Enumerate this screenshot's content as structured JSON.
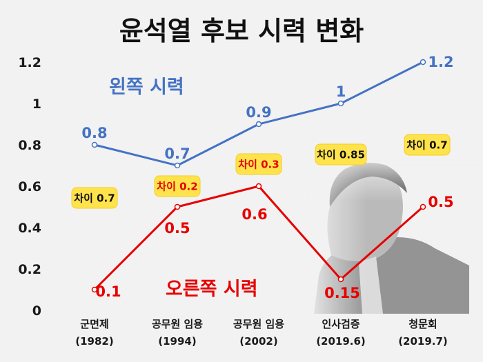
{
  "chart_data": {
    "type": "line",
    "title": "윤석열 후보 시력 변화",
    "categories": [
      [
        "군면제",
        "(1982)"
      ],
      [
        "공무원 임용",
        "(1994)"
      ],
      [
        "공무원 임용",
        "(2002)"
      ],
      [
        "인사검증",
        "(2019.6)"
      ],
      [
        "청문회",
        "(2019.7)"
      ]
    ],
    "ylim": [
      0,
      1.2
    ],
    "yticks": [
      "0",
      "0.2",
      "0.4",
      "0.6",
      "0.8",
      "1",
      "1.2"
    ],
    "grid": false,
    "series": [
      {
        "name": "왼쪽 시력",
        "color": "#4472c4",
        "values": [
          0.8,
          0.7,
          0.9,
          1,
          1.2
        ],
        "labels": [
          "0.8",
          "0.7",
          "0.9",
          "1",
          "1.2"
        ]
      },
      {
        "name": "오른쪽 시력",
        "color": "#e60000",
        "values": [
          0.1,
          0.5,
          0.6,
          0.15,
          0.5
        ],
        "labels": [
          "0.1",
          "0.5",
          "0.6",
          "0.15",
          "0.5"
        ]
      }
    ],
    "annotations": [
      {
        "text": "차이 0.7",
        "category": 0,
        "color": "#111111"
      },
      {
        "text": "차이 0.2",
        "category": 1,
        "color": "#e60000"
      },
      {
        "text": "차이 0.3",
        "category": 2,
        "color": "#e60000"
      },
      {
        "text": "차이 0.85",
        "category": 3,
        "color": "#111111"
      },
      {
        "text": "차이 0.7",
        "category": 4,
        "color": "#111111"
      }
    ]
  }
}
